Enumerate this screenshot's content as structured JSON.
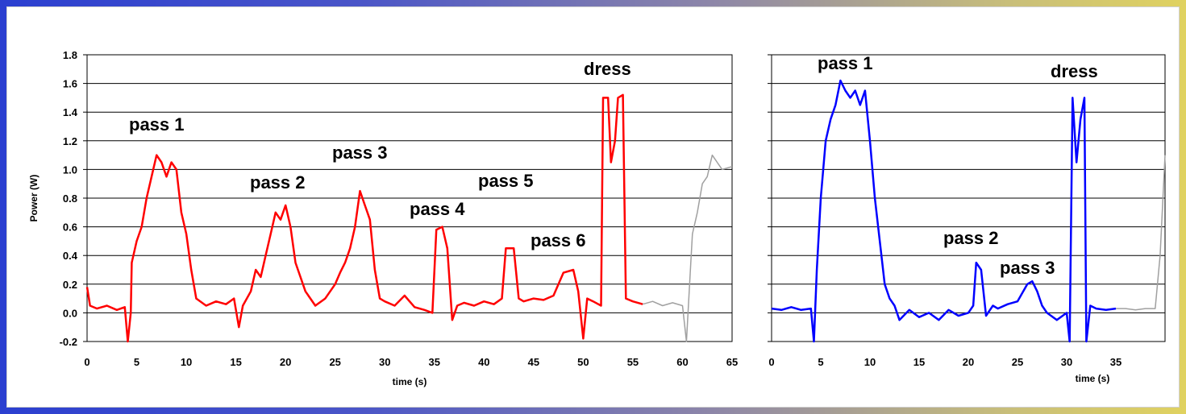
{
  "chart_data": [
    {
      "type": "line",
      "xlabel": "time (s)",
      "ylabel": "Power (W)",
      "xlim": [
        0,
        65
      ],
      "ylim": [
        -0.2,
        1.8
      ],
      "xticks": [
        "0",
        "5",
        "10",
        "15",
        "20",
        "25",
        "30",
        "35",
        "40",
        "45",
        "50",
        "55",
        "60",
        "65"
      ],
      "yticks": [
        "-0.2",
        "0.0",
        "0.2",
        "0.4",
        "0.6",
        "0.8",
        "1.0",
        "1.2",
        "1.4",
        "1.6",
        "1.8"
      ],
      "grid": "horizontal",
      "series": [
        {
          "color": "#ff0000",
          "points": [
            [
              0,
              0.18
            ],
            [
              0.3,
              0.05
            ],
            [
              1,
              0.03
            ],
            [
              2,
              0.05
            ],
            [
              3,
              0.02
            ],
            [
              3.8,
              0.04
            ],
            [
              4.1,
              -0.2
            ],
            [
              4.4,
              0.0
            ],
            [
              4.5,
              0.35
            ],
            [
              5,
              0.5
            ],
            [
              5.5,
              0.6
            ],
            [
              6,
              0.8
            ],
            [
              6.5,
              0.95
            ],
            [
              7,
              1.1
            ],
            [
              7.5,
              1.05
            ],
            [
              8,
              0.95
            ],
            [
              8.5,
              1.05
            ],
            [
              9,
              1.0
            ],
            [
              9.5,
              0.7
            ],
            [
              10,
              0.55
            ],
            [
              10.5,
              0.3
            ],
            [
              11,
              0.1
            ],
            [
              12,
              0.05
            ],
            [
              13,
              0.08
            ],
            [
              14,
              0.06
            ],
            [
              14.8,
              0.1
            ],
            [
              15.3,
              -0.1
            ],
            [
              15.7,
              0.05
            ],
            [
              16.5,
              0.15
            ],
            [
              17,
              0.3
            ],
            [
              17.5,
              0.25
            ],
            [
              18,
              0.4
            ],
            [
              18.5,
              0.55
            ],
            [
              19,
              0.7
            ],
            [
              19.5,
              0.65
            ],
            [
              20,
              0.75
            ],
            [
              20.5,
              0.6
            ],
            [
              21,
              0.35
            ],
            [
              22,
              0.15
            ],
            [
              23,
              0.05
            ],
            [
              24,
              0.1
            ],
            [
              25,
              0.2
            ],
            [
              25.5,
              0.28
            ],
            [
              26,
              0.35
            ],
            [
              26.5,
              0.45
            ],
            [
              27,
              0.6
            ],
            [
              27.5,
              0.85
            ],
            [
              28,
              0.75
            ],
            [
              28.5,
              0.65
            ],
            [
              29,
              0.3
            ],
            [
              29.5,
              0.1
            ],
            [
              30,
              0.08
            ],
            [
              31,
              0.05
            ],
            [
              32,
              0.12
            ],
            [
              33,
              0.04
            ],
            [
              34,
              0.02
            ],
            [
              34.8,
              0.0
            ],
            [
              35.2,
              0.58
            ],
            [
              35.8,
              0.6
            ],
            [
              36.3,
              0.45
            ],
            [
              36.8,
              -0.05
            ],
            [
              37.3,
              0.05
            ],
            [
              38,
              0.07
            ],
            [
              39,
              0.05
            ],
            [
              40,
              0.08
            ],
            [
              41,
              0.06
            ],
            [
              41.8,
              0.1
            ],
            [
              42.2,
              0.45
            ],
            [
              43,
              0.45
            ],
            [
              43.5,
              0.1
            ],
            [
              44,
              0.08
            ],
            [
              45,
              0.1
            ],
            [
              46,
              0.09
            ],
            [
              47,
              0.12
            ],
            [
              48,
              0.28
            ],
            [
              49,
              0.3
            ],
            [
              49.5,
              0.15
            ],
            [
              50,
              -0.18
            ],
            [
              50.4,
              0.1
            ],
            [
              51,
              0.08
            ],
            [
              51.8,
              0.05
            ],
            [
              52,
              1.5
            ],
            [
              52.5,
              1.5
            ],
            [
              52.8,
              1.05
            ],
            [
              53.2,
              1.2
            ],
            [
              53.5,
              1.5
            ],
            [
              54,
              1.52
            ],
            [
              54.3,
              0.1
            ],
            [
              55,
              0.08
            ],
            [
              56,
              0.06
            ]
          ]
        },
        {
          "color": "#a0a0a0",
          "points": [
            [
              56,
              0.06
            ],
            [
              57,
              0.08
            ],
            [
              58,
              0.05
            ],
            [
              59,
              0.07
            ],
            [
              60,
              0.05
            ],
            [
              60.4,
              -0.2
            ],
            [
              60.8,
              0.3
            ],
            [
              61,
              0.55
            ],
            [
              61.5,
              0.7
            ],
            [
              62,
              0.9
            ],
            [
              62.5,
              0.95
            ],
            [
              63,
              1.1
            ],
            [
              63.5,
              1.05
            ],
            [
              64,
              1.0
            ],
            [
              65,
              1.02
            ]
          ]
        }
      ],
      "annotations": [
        "pass 1",
        "pass 2",
        "pass 3",
        "pass 4",
        "pass 5",
        "pass 6",
        "dress"
      ]
    },
    {
      "type": "line",
      "xlabel": "time (s)",
      "xlim": [
        0,
        40
      ],
      "ylim": [
        -0.2,
        1.8
      ],
      "xticks": [
        "0",
        "5",
        "10",
        "15",
        "20",
        "25",
        "30",
        "35"
      ],
      "grid": "horizontal",
      "series": [
        {
          "color": "#0000ff",
          "points": [
            [
              0,
              0.03
            ],
            [
              1,
              0.02
            ],
            [
              2,
              0.04
            ],
            [
              3,
              0.02
            ],
            [
              4,
              0.03
            ],
            [
              4.3,
              -0.2
            ],
            [
              4.6,
              0.3
            ],
            [
              5,
              0.8
            ],
            [
              5.5,
              1.2
            ],
            [
              6,
              1.35
            ],
            [
              6.5,
              1.45
            ],
            [
              7,
              1.62
            ],
            [
              7.5,
              1.55
            ],
            [
              8,
              1.5
            ],
            [
              8.5,
              1.55
            ],
            [
              9,
              1.45
            ],
            [
              9.5,
              1.55
            ],
            [
              10,
              1.2
            ],
            [
              10.5,
              0.8
            ],
            [
              11,
              0.5
            ],
            [
              11.5,
              0.2
            ],
            [
              12,
              0.1
            ],
            [
              12.5,
              0.05
            ],
            [
              13,
              -0.05
            ],
            [
              14,
              0.02
            ],
            [
              15,
              -0.03
            ],
            [
              16,
              0.0
            ],
            [
              17,
              -0.05
            ],
            [
              18,
              0.02
            ],
            [
              19,
              -0.02
            ],
            [
              20,
              0.0
            ],
            [
              20.5,
              0.05
            ],
            [
              20.8,
              0.35
            ],
            [
              21.3,
              0.3
            ],
            [
              21.8,
              -0.02
            ],
            [
              22.5,
              0.05
            ],
            [
              23,
              0.03
            ],
            [
              24,
              0.06
            ],
            [
              25,
              0.08
            ],
            [
              26,
              0.2
            ],
            [
              26.5,
              0.22
            ],
            [
              27,
              0.15
            ],
            [
              27.5,
              0.05
            ],
            [
              28,
              0.0
            ],
            [
              29,
              -0.05
            ],
            [
              30,
              0.0
            ],
            [
              30.3,
              -0.2
            ],
            [
              30.6,
              1.5
            ],
            [
              31,
              1.05
            ],
            [
              31.4,
              1.35
            ],
            [
              31.8,
              1.5
            ],
            [
              32,
              -0.2
            ],
            [
              32.4,
              0.05
            ],
            [
              33,
              0.03
            ],
            [
              34,
              0.02
            ],
            [
              35,
              0.03
            ]
          ]
        },
        {
          "color": "#a0a0a0",
          "points": [
            [
              35,
              0.03
            ],
            [
              36,
              0.03
            ],
            [
              37,
              0.02
            ],
            [
              38,
              0.03
            ],
            [
              39,
              0.03
            ],
            [
              39.5,
              0.4
            ],
            [
              40,
              1.1
            ]
          ]
        }
      ],
      "annotations": [
        "pass 1",
        "pass 2",
        "pass 3",
        "dress"
      ]
    }
  ]
}
